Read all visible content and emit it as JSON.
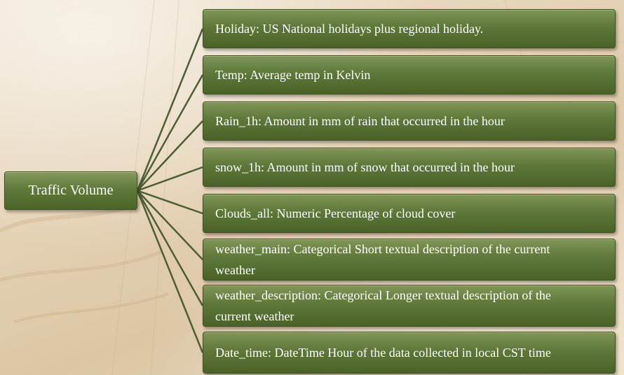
{
  "diagram": {
    "root": {
      "label": "Traffic Volume"
    },
    "items": [
      {
        "label": "Holiday: US National holidays plus regional holiday."
      },
      {
        "label": "Temp: Average temp in Kelvin"
      },
      {
        "label": "Rain_1h: Amount in mm of rain that occurred in the hour"
      },
      {
        "label": "snow_1h: Amount in mm of snow that occurred in the hour"
      },
      {
        "label": "Clouds_all: Numeric Percentage of cloud cover"
      },
      {
        "label": "weather_main: Categorical Short textual description of the current weather"
      },
      {
        "label": "weather_description: Categorical Longer textual description of the current weather"
      },
      {
        "label": "Date_time: DateTime Hour of the data collected in local CST time"
      }
    ]
  },
  "colors": {
    "box_fill": "#5e783a",
    "box_border": "#3d5220",
    "connector": "#4d5e33",
    "text": "#ffffff",
    "background": "#e4d1b3"
  }
}
